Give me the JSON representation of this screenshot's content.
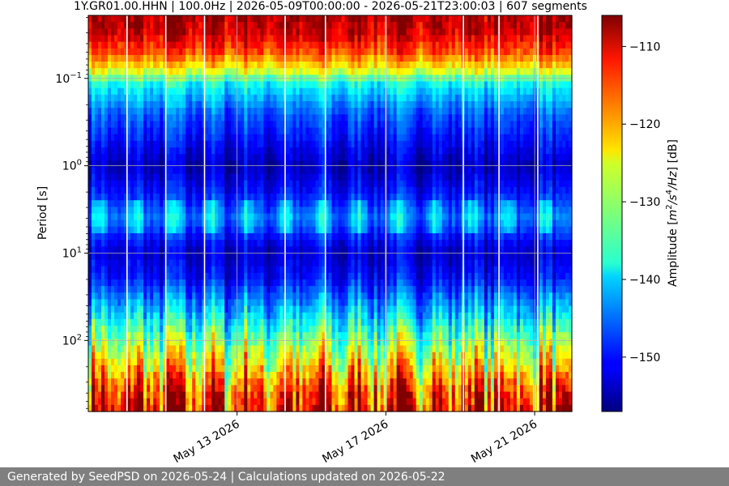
{
  "chart_data": {
    "type": "heatmap",
    "title": "1Y.GR01.00.HHN | 100.0Hz | 2026-05-09T00:00:00 - 2026-05-21T23:00:03 | 607 segments",
    "ylabel": "Period [s]",
    "xlabel": "",
    "y_scale": "log",
    "y_inverted": true,
    "ylim": [
      0.019,
      650
    ],
    "x_range": [
      "2026-05-09T00:00:00",
      "2026-05-22T00:00:00"
    ],
    "x_ticks": [
      {
        "date": "2026-05-13",
        "label": "May 13 2026"
      },
      {
        "date": "2026-05-17",
        "label": "May 17 2026"
      },
      {
        "date": "2026-05-21",
        "label": "May 21 2026"
      }
    ],
    "y_ticks": [
      {
        "value": 0.1,
        "base": "10",
        "exp": "−1"
      },
      {
        "value": 1,
        "base": "10",
        "exp": "0"
      },
      {
        "value": 10,
        "base": "10",
        "exp": "1"
      },
      {
        "value": 100,
        "base": "10",
        "exp": "2"
      }
    ],
    "grid": true,
    "colormap": "jet",
    "colorbar": {
      "label_main": "Amplitude [",
      "label_unit_a": "m",
      "label_exp_a": "2",
      "label_unit_b": "/s",
      "label_exp_b": "4",
      "label_unit_c": "/Hz",
      "label_end": "] [dB]",
      "range": [
        -157,
        -106
      ],
      "ticks": [
        {
          "value": -110,
          "label": "−110"
        },
        {
          "value": -120,
          "label": "−120"
        },
        {
          "value": -130,
          "label": "−130"
        },
        {
          "value": -140,
          "label": "−140"
        },
        {
          "value": -150,
          "label": "−150"
        }
      ]
    },
    "gap_dates": [
      "2026-05-10T01:00:00",
      "2026-05-11T02:00:00",
      "2026-05-12T03:00:00",
      "2026-05-14T07:00:00",
      "2026-05-15T09:00:00",
      "2026-05-17T00:00:00",
      "2026-05-19T02:00:00",
      "2026-05-20T01:00:00",
      "2026-05-21T02:00:00"
    ],
    "period_profile": [
      {
        "period": 0.019,
        "db": -108
      },
      {
        "period": 0.03,
        "db": -110
      },
      {
        "period": 0.05,
        "db": -116
      },
      {
        "period": 0.08,
        "db": -126
      },
      {
        "period": 0.12,
        "db": -138
      },
      {
        "period": 0.25,
        "db": -146
      },
      {
        "period": 0.5,
        "db": -150
      },
      {
        "period": 1.0,
        "db": -154
      },
      {
        "period": 2.0,
        "db": -150
      },
      {
        "period": 4.0,
        "db": -144
      },
      {
        "period": 7.0,
        "db": -150
      },
      {
        "period": 10.0,
        "db": -153
      },
      {
        "period": 20.0,
        "db": -150
      },
      {
        "period": 50.0,
        "db": -140
      },
      {
        "period": 100.0,
        "db": -132
      },
      {
        "period": 200.0,
        "db": -124
      },
      {
        "period": 400.0,
        "db": -115
      },
      {
        "period": 650.0,
        "db": -112
      }
    ]
  },
  "footer": {
    "text": "Generated by SeedPSD on 2026-05-24 | Calculations updated on 2026-05-22"
  }
}
